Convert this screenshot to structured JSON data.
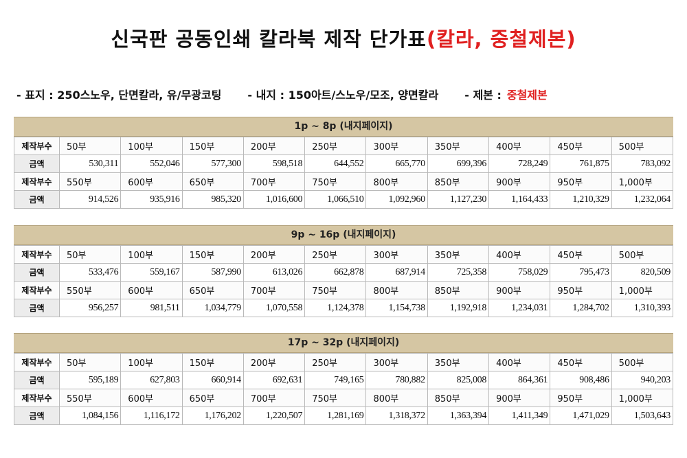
{
  "title": {
    "main": "신국판 공동인쇄 칼라북 제작 단가표",
    "highlight": "(칼라, 중철제본)"
  },
  "spec": {
    "cover": "- 표지 : 250스노우, 단면칼라, 유/무광코팅",
    "inner": "- 내지 : 150아트/스노우/모조, 양면칼라",
    "binding_label": "- 제본 :",
    "binding_value": "중철제본"
  },
  "labels": {
    "qty": "제작부수",
    "price": "금액"
  },
  "qty_rows": [
    [
      "50부",
      "100부",
      "150부",
      "200부",
      "250부",
      "300부",
      "350부",
      "400부",
      "450부",
      "500부"
    ],
    [
      "550부",
      "600부",
      "650부",
      "700부",
      "750부",
      "800부",
      "850부",
      "900부",
      "950부",
      "1,000부"
    ]
  ],
  "sections": [
    {
      "header": "1p ~ 8p (내지페이지)",
      "prices": [
        [
          "530,311",
          "552,046",
          "577,300",
          "598,518",
          "644,552",
          "665,770",
          "699,396",
          "728,249",
          "761,875",
          "783,092"
        ],
        [
          "914,526",
          "935,916",
          "985,320",
          "1,016,600",
          "1,066,510",
          "1,092,960",
          "1,127,230",
          "1,164,433",
          "1,210,329",
          "1,232,064"
        ]
      ]
    },
    {
      "header": "9p ~ 16p (내지페이지)",
      "prices": [
        [
          "533,476",
          "559,167",
          "587,990",
          "613,026",
          "662,878",
          "687,914",
          "725,358",
          "758,029",
          "795,473",
          "820,509"
        ],
        [
          "956,257",
          "981,511",
          "1,034,779",
          "1,070,558",
          "1,124,378",
          "1,154,738",
          "1,192,918",
          "1,234,031",
          "1,284,702",
          "1,310,393"
        ]
      ]
    },
    {
      "header": "17p ~ 32p (내지페이지)",
      "prices": [
        [
          "595,189",
          "627,803",
          "660,914",
          "692,631",
          "749,165",
          "780,882",
          "825,008",
          "864,361",
          "908,486",
          "940,203"
        ],
        [
          "1,084,156",
          "1,116,172",
          "1,176,202",
          "1,220,507",
          "1,281,169",
          "1,318,372",
          "1,363,394",
          "1,411,349",
          "1,471,029",
          "1,503,643"
        ]
      ]
    }
  ]
}
